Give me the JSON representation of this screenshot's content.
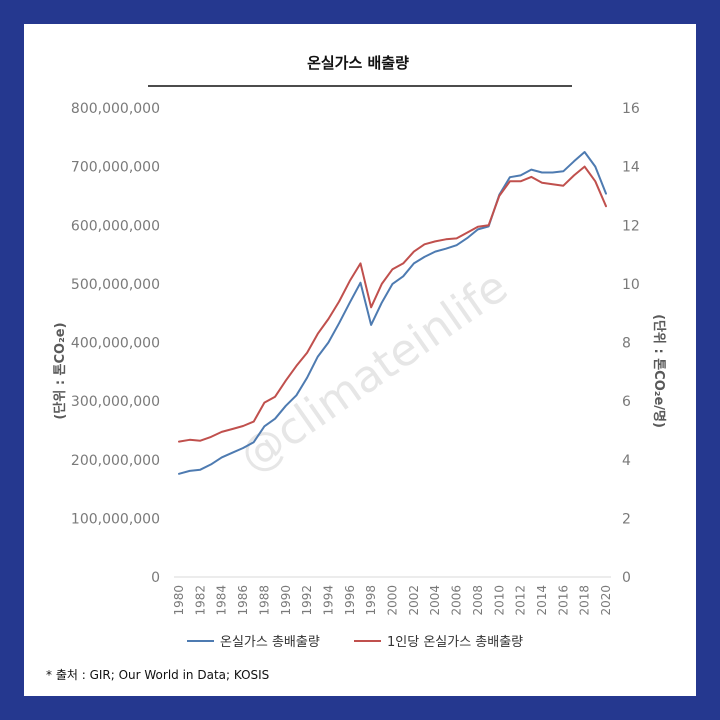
{
  "chart_data": {
    "type": "line",
    "title": "온실가스  배출량",
    "x": [
      1980,
      1981,
      1982,
      1983,
      1984,
      1985,
      1986,
      1987,
      1988,
      1989,
      1990,
      1991,
      1992,
      1993,
      1994,
      1995,
      1996,
      1997,
      1998,
      1999,
      2000,
      2001,
      2002,
      2003,
      2004,
      2005,
      2006,
      2007,
      2008,
      2009,
      2010,
      2011,
      2012,
      2013,
      2014,
      2015,
      2016,
      2017,
      2018,
      2019,
      2020
    ],
    "series": [
      {
        "name": "온실가스 총배출량",
        "axis": "left",
        "color": "#4e7bb1",
        "values": [
          176000000,
          181000000,
          183000000,
          192000000,
          204000000,
          212000000,
          220000000,
          230000000,
          257000000,
          270000000,
          292000000,
          310000000,
          340000000,
          376000000,
          400000000,
          433000000,
          468000000,
          502000000,
          430000000,
          468000000,
          500000000,
          513000000,
          535000000,
          546000000,
          555000000,
          560000000,
          566000000,
          578000000,
          593000000,
          598000000,
          652000000,
          682000000,
          685000000,
          695000000,
          690000000,
          690000000,
          692000000,
          709000000,
          725000000,
          700000000,
          654000000
        ]
      },
      {
        "name": "1인당 온실가스 총배출량",
        "axis": "right",
        "color": "#c0504d",
        "values": [
          4.62,
          4.68,
          4.65,
          4.78,
          4.95,
          5.05,
          5.15,
          5.3,
          5.95,
          6.15,
          6.7,
          7.2,
          7.65,
          8.3,
          8.8,
          9.4,
          10.1,
          10.7,
          9.2,
          10.0,
          10.5,
          10.7,
          11.1,
          11.35,
          11.45,
          11.52,
          11.55,
          11.75,
          11.95,
          12.0,
          13.0,
          13.5,
          13.5,
          13.65,
          13.45,
          13.4,
          13.35,
          13.7,
          14.0,
          13.5,
          12.65
        ]
      }
    ],
    "y_left": {
      "ylim": [
        0,
        800000000
      ],
      "ticks": [
        0,
        100000000,
        200000000,
        300000000,
        400000000,
        500000000,
        600000000,
        700000000,
        800000000
      ],
      "tick_labels": [
        "0",
        "100,000,000",
        "200,000,000",
        "300,000,000",
        "400,000,000",
        "500,000,000",
        "600,000,000",
        "700,000,000",
        "800,000,000"
      ],
      "label": "(단위 : 톤CO₂e)"
    },
    "y_right": {
      "ylim": [
        0,
        16
      ],
      "ticks": [
        0,
        2,
        4,
        6,
        8,
        10,
        12,
        14,
        16
      ],
      "tick_labels": [
        "0",
        "2",
        "4",
        "6",
        "8",
        "10",
        "12",
        "14",
        "16"
      ],
      "label": "(단위 : 톤CO₂e/명)"
    },
    "x_tick_labels": [
      "1980",
      "1982",
      "1984",
      "1986",
      "1988",
      "1990",
      "1992",
      "1994",
      "1996",
      "1998",
      "2000",
      "2002",
      "2004",
      "2006",
      "2008",
      "2010",
      "2012",
      "2014",
      "2016",
      "2018",
      "2020"
    ],
    "grid": false,
    "legend_position": "bottom",
    "source": "* 출처 : GIR; Our World in Data;  KOSIS",
    "watermark": "@climateinlife"
  }
}
